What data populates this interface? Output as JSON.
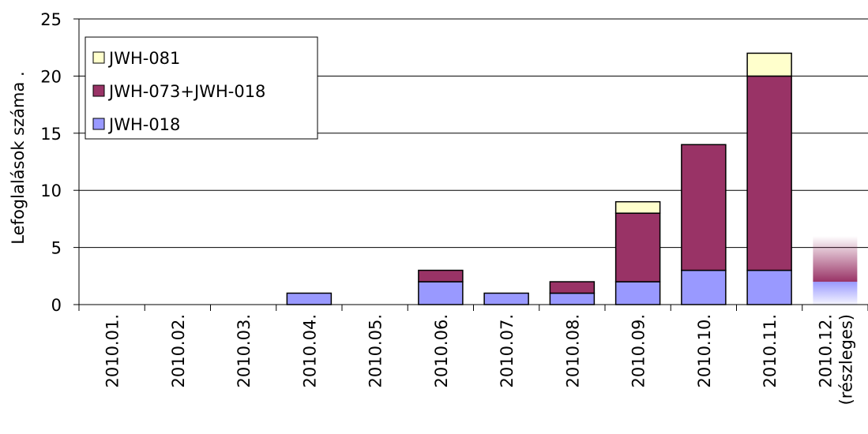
{
  "chart_data": {
    "type": "stacked_bar",
    "y_axis_label": "Lefoglalások száma .",
    "categories": [
      "2010.01.",
      "2010.02.",
      "2010.03.",
      "2010.04.",
      "2010.05.",
      "2010.06.",
      "2010.07.",
      "2010.08.",
      "2010.09.",
      "2010.10.",
      "2010.11.",
      "2010.12.\n(részleges)"
    ],
    "series": [
      {
        "name": "JWH-018",
        "color": "#9999ff",
        "values": [
          0,
          0,
          0,
          1,
          0,
          2,
          1,
          1,
          2,
          3,
          3,
          2
        ]
      },
      {
        "name": "JWH-073+JWH-018",
        "color": "#993366",
        "values": [
          0,
          0,
          0,
          0,
          0,
          1,
          0,
          1,
          6,
          11,
          17,
          4
        ]
      },
      {
        "name": "JWH-081",
        "color": "#ffffcc",
        "values": [
          0,
          0,
          0,
          0,
          0,
          0,
          0,
          0,
          1,
          0,
          2,
          0
        ]
      }
    ],
    "ylim": [
      0,
      25
    ],
    "yticks": [
      0,
      5,
      10,
      15,
      20,
      25
    ],
    "grid": true,
    "legend": "upper left"
  }
}
